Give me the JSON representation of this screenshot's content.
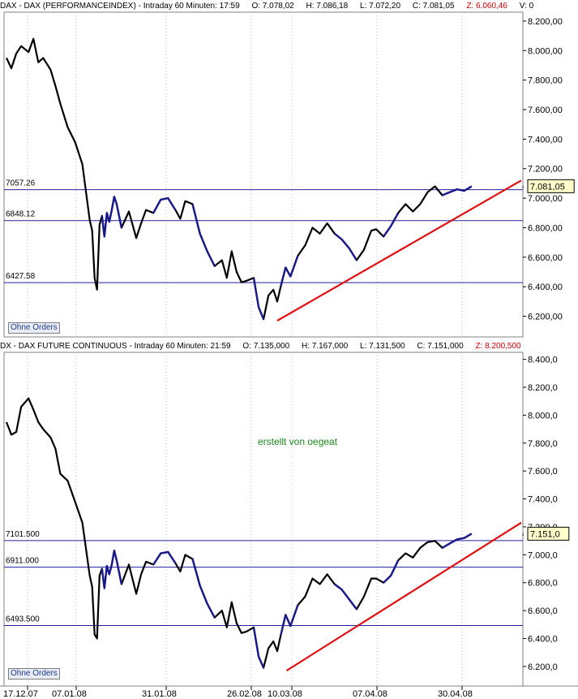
{
  "panels": [
    {
      "header": {
        "symbol": "DAX",
        "name": "DAX (PERFORMANCEINDEX)",
        "interval": "Intraday 60 Minuten",
        "time": "17:59",
        "o": "O: 7.078,02",
        "h": "H: 7.086,18",
        "l": "L: 7.072,20",
        "c": "C: 7.081,05",
        "z": "Z: 6.060,46",
        "v": "V: 0"
      },
      "current_label": "7.081,05",
      "badge": "Ohne Orders"
    },
    {
      "header": {
        "symbol": "DX",
        "name": "DAX FUTURE CONTINUOUS",
        "interval": "Intraday 60 Minuten",
        "time": "21:59",
        "o": "O: 7.135,000",
        "h": "H: 7.167,000",
        "l": "L: 7.131,500",
        "c": "C: 7.151,000",
        "z": "Z: 8.200,500",
        "v": "V"
      },
      "current_label": "7.151,0",
      "badge": "Ohne Orders",
      "annotation": "erstellt von oegeat"
    }
  ],
  "chart_data": [
    {
      "type": "line",
      "title": "DAX - DAX (PERFORMANCEINDEX) - Intraday 60 Minuten",
      "ylim": [
        6060,
        8260
      ],
      "y_ticks": [
        6200,
        6400,
        6600,
        6800,
        7000,
        7200,
        7400,
        7600,
        7800,
        8000,
        8200
      ],
      "y_tick_labels": [
        "6.200,00",
        "6.400,00",
        "6.600,00",
        "6.800,00",
        "7.000,00",
        "7.200,00",
        "7.400,00",
        "7.600,00",
        "7.800,00",
        "8.000,00",
        "8.200,00"
      ],
      "x_dates": [
        "17.12.07",
        "07.01.08",
        "31.01.08",
        "26.02.08",
        "10.03.08",
        "07.04.08",
        "30.04.08"
      ],
      "horizontal_lines": [
        {
          "value": 7057.26,
          "label": "7057.26"
        },
        {
          "value": 6848.12,
          "label": "6848.12"
        },
        {
          "value": 6427.58,
          "label": "6427.58"
        }
      ],
      "trendline": [
        [
          0.553,
          6170
        ],
        [
          1.0,
          7120
        ]
      ],
      "current_value": 7081.05,
      "series": [
        {
          "x": [
            0,
            0.01,
            0.02,
            0.03,
            0.045,
            0.055,
            0.065,
            0.075,
            0.09,
            0.1,
            0.11,
            0.125,
            0.14,
            0.155,
            0.17,
            0.175,
            0.18,
            0.185,
            0.19,
            0.195,
            0.2,
            0.205,
            0.21,
            0.215,
            0.22,
            0.225,
            0.235,
            0.25,
            0.265,
            0.275,
            0.285,
            0.3,
            0.315,
            0.33,
            0.345,
            0.355,
            0.365,
            0.38,
            0.395,
            0.41,
            0.425,
            0.44,
            0.45,
            0.46,
            0.47,
            0.48,
            0.49,
            0.505,
            0.515,
            0.525,
            0.535,
            0.545,
            0.553,
            0.56,
            0.57,
            0.58,
            0.595,
            0.61,
            0.625,
            0.64,
            0.655,
            0.67,
            0.685,
            0.7,
            0.715,
            0.73,
            0.745,
            0.755,
            0.77,
            0.785,
            0.8,
            0.815,
            0.83,
            0.845,
            0.86,
            0.875,
            0.89,
            0.905,
            0.92,
            0.935,
            0.95
          ],
          "values": [
            7950,
            7880,
            7980,
            8030,
            7990,
            8080,
            7920,
            7950,
            7870,
            7760,
            7640,
            7480,
            7380,
            7230,
            6850,
            6780,
            6460,
            6380,
            6820,
            6880,
            6740,
            6900,
            6840,
            6920,
            7010,
            6960,
            6800,
            6910,
            6730,
            6830,
            6920,
            6900,
            6990,
            7000,
            6920,
            6860,
            6980,
            6960,
            6760,
            6640,
            6540,
            6580,
            6460,
            6640,
            6500,
            6430,
            6440,
            6460,
            6260,
            6180,
            6340,
            6380,
            6300,
            6400,
            6530,
            6470,
            6610,
            6680,
            6800,
            6760,
            6830,
            6760,
            6720,
            6660,
            6580,
            6650,
            6780,
            6790,
            6740,
            6810,
            6900,
            6960,
            6910,
            6960,
            7040,
            7080,
            7020,
            7040,
            7060,
            7050,
            7080
          ]
        }
      ]
    },
    {
      "type": "line",
      "title": "DX - DAX FUTURE CONTINUOUS - Intraday 60 Minuten",
      "ylim": [
        6060,
        8450
      ],
      "y_ticks": [
        6200,
        6400,
        6600,
        6800,
        7000,
        7200,
        7400,
        7600,
        7800,
        8000,
        8200,
        8400
      ],
      "y_tick_labels": [
        "6.200,0",
        "6.400,0",
        "6.600,0",
        "6.800,0",
        "7.000,0",
        "7.200,0",
        "7.400,0",
        "7.600,0",
        "7.800,0",
        "8.000,0",
        "8.200,0",
        "8.400,0"
      ],
      "x_dates": [
        "17.12.07",
        "07.01.08",
        "31.01.08",
        "26.02.08",
        "10.03.08",
        "07.04.08",
        "30.04.08"
      ],
      "horizontal_lines": [
        {
          "value": 7101.5,
          "label": "7101.500"
        },
        {
          "value": 6911.0,
          "label": "6911.000"
        },
        {
          "value": 6493.5,
          "label": "6493.500"
        }
      ],
      "trendline": [
        [
          0.572,
          6170
        ],
        [
          1.0,
          7230
        ]
      ],
      "current_value": 7151.0,
      "series": [
        {
          "x": [
            0,
            0.01,
            0.02,
            0.03,
            0.045,
            0.055,
            0.065,
            0.075,
            0.09,
            0.1,
            0.11,
            0.125,
            0.14,
            0.155,
            0.17,
            0.175,
            0.18,
            0.185,
            0.19,
            0.195,
            0.2,
            0.205,
            0.21,
            0.215,
            0.22,
            0.225,
            0.235,
            0.25,
            0.265,
            0.275,
            0.285,
            0.3,
            0.315,
            0.33,
            0.345,
            0.355,
            0.365,
            0.38,
            0.395,
            0.41,
            0.425,
            0.44,
            0.45,
            0.46,
            0.47,
            0.48,
            0.49,
            0.505,
            0.515,
            0.525,
            0.535,
            0.545,
            0.553,
            0.56,
            0.57,
            0.58,
            0.595,
            0.61,
            0.625,
            0.64,
            0.655,
            0.67,
            0.685,
            0.7,
            0.715,
            0.73,
            0.745,
            0.755,
            0.77,
            0.785,
            0.8,
            0.815,
            0.83,
            0.845,
            0.86,
            0.875,
            0.89,
            0.905,
            0.92,
            0.935,
            0.95
          ],
          "values": [
            7950,
            7860,
            7880,
            8060,
            8120,
            8040,
            7950,
            7900,
            7840,
            7760,
            7580,
            7530,
            7380,
            7230,
            6850,
            6770,
            6430,
            6400,
            6850,
            6900,
            6760,
            6920,
            6860,
            6930,
            7030,
            6960,
            6790,
            6930,
            6720,
            6860,
            6950,
            6930,
            7010,
            7020,
            6940,
            6880,
            7000,
            6970,
            6780,
            6650,
            6550,
            6600,
            6480,
            6660,
            6510,
            6440,
            6450,
            6480,
            6270,
            6190,
            6330,
            6380,
            6310,
            6420,
            6570,
            6490,
            6640,
            6700,
            6830,
            6790,
            6860,
            6790,
            6750,
            6680,
            6610,
            6700,
            6830,
            6830,
            6800,
            6850,
            6960,
            7010,
            6980,
            7050,
            7090,
            7100,
            7050,
            7080,
            7110,
            7120,
            7151
          ]
        }
      ]
    }
  ]
}
